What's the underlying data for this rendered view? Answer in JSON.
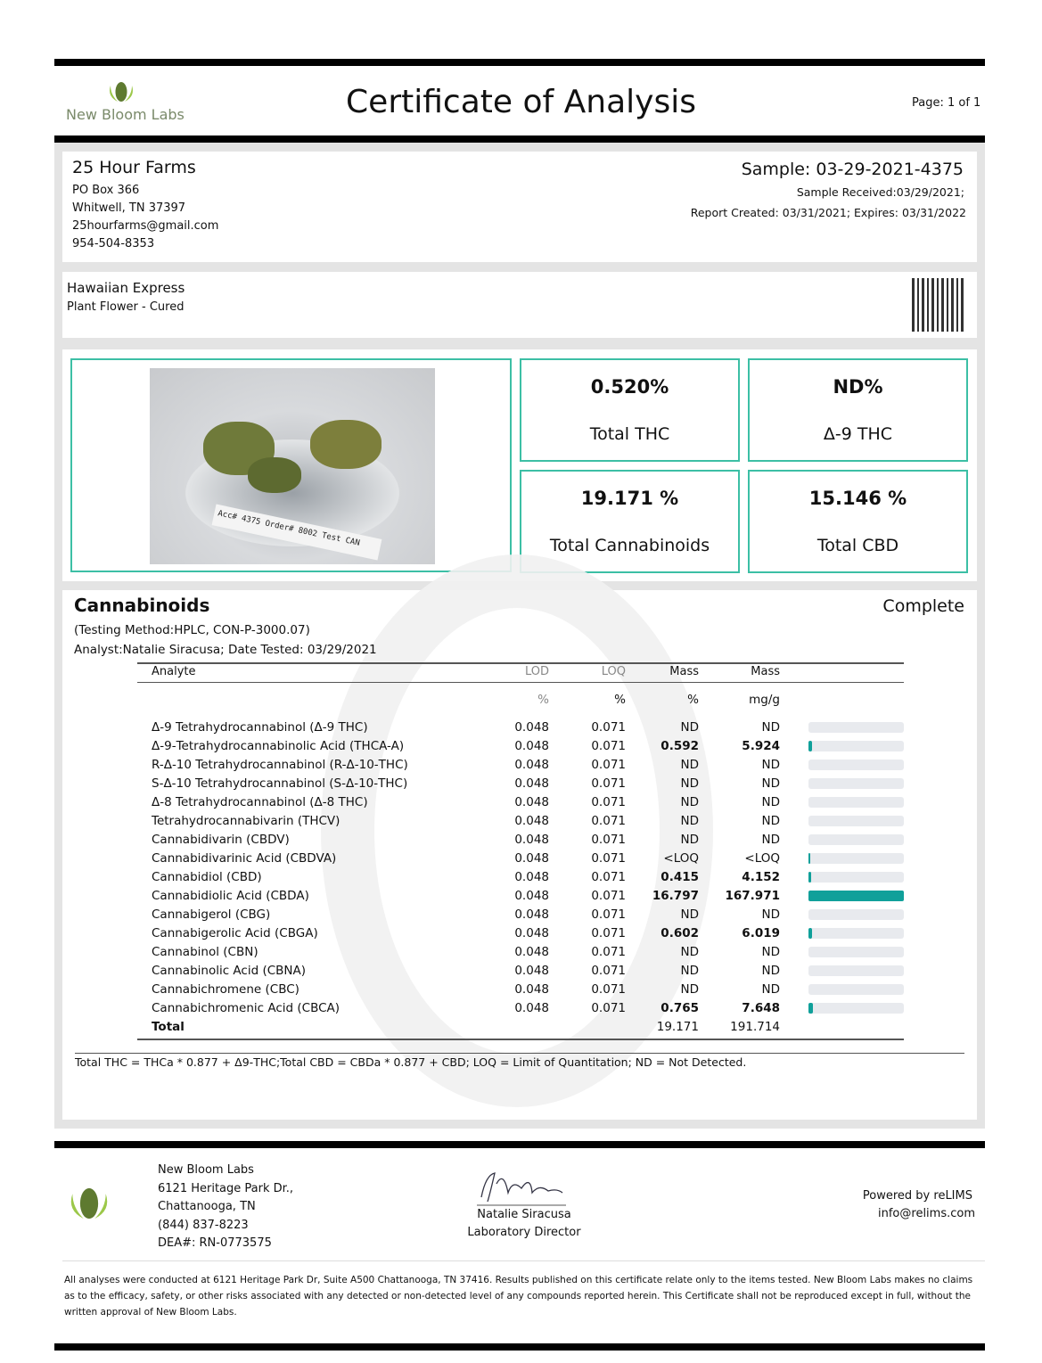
{
  "header": {
    "logo_text": "New Bloom Labs",
    "title": "Certificate of Analysis",
    "page": "Page: 1 of 1"
  },
  "client": {
    "name": "25 Hour Farms",
    "address1": "PO Box 366",
    "address2": "Whitwell, TN 37397",
    "email": "25hourfarms@gmail.com",
    "phone": "954-504-8353"
  },
  "sample": {
    "id": "Sample: 03-29-2021-4375",
    "received": "Sample Received:03/29/2021;",
    "report": "Report Created: 03/31/2021; Expires: 03/31/2022"
  },
  "product": {
    "name": "Hawaiian Express",
    "type": "Plant Flower - Cured"
  },
  "photo": {
    "label_text": "Acc# 4375 Order# 8002 Test CAN"
  },
  "summary": [
    {
      "value": "0.520%",
      "label": "Total THC"
    },
    {
      "value": "ND%",
      "label": "Δ-9 THC"
    },
    {
      "value": "19.171 %",
      "label": "Total Cannabinoids"
    },
    {
      "value": "15.146 %",
      "label": "Total CBD"
    }
  ],
  "cannabinoids": {
    "title": "Cannabinoids",
    "status": "Complete",
    "method": "(Testing Method:HPLC, CON-P-3000.07)",
    "analyst": "Analyst:Natalie Siracusa; Date Tested: 03/29/2021",
    "headers": [
      "Analyte",
      "LOD",
      "LOQ",
      "Mass",
      "Mass"
    ],
    "units": [
      "",
      "%",
      "%",
      "%",
      "mg/g"
    ],
    "bar_color": "#10a09a",
    "rows": [
      {
        "analyte": "Δ-9 Tetrahydrocannabinol (Δ-9 THC)",
        "lod": "0.048",
        "loq": "0.071",
        "pct": "ND",
        "mg": "ND"
      },
      {
        "analyte": "Δ-9-Tetrahydrocannabinolic Acid (THCA-A)",
        "lod": "0.048",
        "loq": "0.071",
        "pct": "0.592",
        "mg": "5.924"
      },
      {
        "analyte": "R-Δ-10 Tetrahydrocannabinol (R-Δ-10-THC)",
        "lod": "0.048",
        "loq": "0.071",
        "pct": "ND",
        "mg": "ND"
      },
      {
        "analyte": "S-Δ-10 Tetrahydrocannabinol (S-Δ-10-THC)",
        "lod": "0.048",
        "loq": "0.071",
        "pct": "ND",
        "mg": "ND"
      },
      {
        "analyte": "Δ-8 Tetrahydrocannabinol (Δ-8 THC)",
        "lod": "0.048",
        "loq": "0.071",
        "pct": "ND",
        "mg": "ND"
      },
      {
        "analyte": "Tetrahydrocannabivarin (THCV)",
        "lod": "0.048",
        "loq": "0.071",
        "pct": "ND",
        "mg": "ND"
      },
      {
        "analyte": "Cannabidivarin (CBDV)",
        "lod": "0.048",
        "loq": "0.071",
        "pct": "ND",
        "mg": "ND"
      },
      {
        "analyte": "Cannabidivarinic Acid (CBDVA)",
        "lod": "0.048",
        "loq": "0.071",
        "pct": "<LOQ",
        "mg": "<LOQ"
      },
      {
        "analyte": "Cannabidiol (CBD)",
        "lod": "0.048",
        "loq": "0.071",
        "pct": "0.415",
        "mg": "4.152"
      },
      {
        "analyte": "Cannabidiolic Acid (CBDA)",
        "lod": "0.048",
        "loq": "0.071",
        "pct": "16.797",
        "mg": "167.971"
      },
      {
        "analyte": "Cannabigerol (CBG)",
        "lod": "0.048",
        "loq": "0.071",
        "pct": "ND",
        "mg": "ND"
      },
      {
        "analyte": "Cannabigerolic Acid (CBGA)",
        "lod": "0.048",
        "loq": "0.071",
        "pct": "0.602",
        "mg": "6.019"
      },
      {
        "analyte": "Cannabinol (CBN)",
        "lod": "0.048",
        "loq": "0.071",
        "pct": "ND",
        "mg": "ND"
      },
      {
        "analyte": "Cannabinolic Acid (CBNA)",
        "lod": "0.048",
        "loq": "0.071",
        "pct": "ND",
        "mg": "ND"
      },
      {
        "analyte": "Cannabichromene (CBC)",
        "lod": "0.048",
        "loq": "0.071",
        "pct": "ND",
        "mg": "ND"
      },
      {
        "analyte": "Cannabichromenic Acid (CBCA)",
        "lod": "0.048",
        "loq": "0.071",
        "pct": "0.765",
        "mg": "7.648"
      }
    ],
    "total": {
      "label": "Total",
      "pct": "19.171",
      "mg": "191.714"
    },
    "footnote": "Total THC = THCa * 0.877 + Δ9-THC;Total CBD = CBDa * 0.877 + CBD; LOQ = Limit of Quantitation; ND = Not Detected."
  },
  "footer": {
    "lab": [
      "New Bloom Labs",
      "6121 Heritage Park Dr.,",
      "Chattanooga, TN",
      "(844) 837-8223",
      "DEA#: RN-0773575"
    ],
    "signer": "Natalie Siracusa",
    "signer_title": "Laboratory Director",
    "powered": "Powered by reLIMS",
    "powered_email": "info@relims.com",
    "disclaimer": "All analyses were conducted at 6121 Heritage Park Dr, Suite A500 Chattanooga, TN 37416. Results published on this certificate relate only to the items tested. New Bloom Labs makes no claims as to the efficacy, safety, or other risks associated with any detected or non-detected level of any compounds reported herein. This Certificate shall not be reproduced except in full, without the written approval of New Bloom Labs."
  }
}
